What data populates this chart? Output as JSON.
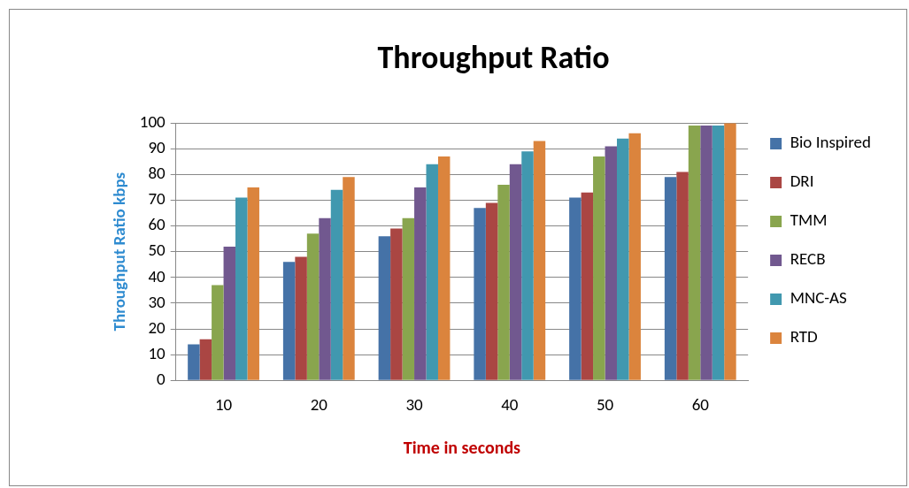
{
  "chart_data": {
    "type": "bar",
    "title": "Throughput Ratio",
    "xlabel": "Time in seconds",
    "ylabel": "Throughput Ratio kbps",
    "categories": [
      "10",
      "20",
      "30",
      "40",
      "50",
      "60"
    ],
    "series": [
      {
        "name": "Bio Inspired",
        "color": "#4572a7",
        "values": [
          14,
          46,
          56,
          67,
          71,
          79
        ]
      },
      {
        "name": "DRI",
        "color": "#aa4643",
        "values": [
          16,
          48,
          59,
          69,
          73,
          81
        ]
      },
      {
        "name": "TMM",
        "color": "#89a54e",
        "values": [
          37,
          57,
          63,
          76,
          87,
          99
        ]
      },
      {
        "name": "RECB",
        "color": "#71588f",
        "values": [
          52,
          63,
          75,
          84,
          91,
          99
        ]
      },
      {
        "name": "MNC-AS",
        "color": "#4198af",
        "values": [
          71,
          74,
          84,
          89,
          94,
          99
        ]
      },
      {
        "name": "RTD",
        "color": "#db843d",
        "values": [
          75,
          79,
          87,
          93,
          96,
          100
        ]
      }
    ],
    "ylim": [
      0,
      100
    ],
    "yticks": [
      0,
      10,
      20,
      30,
      40,
      50,
      60,
      70,
      80,
      90,
      100
    ],
    "grid": "y",
    "legend": "right"
  }
}
